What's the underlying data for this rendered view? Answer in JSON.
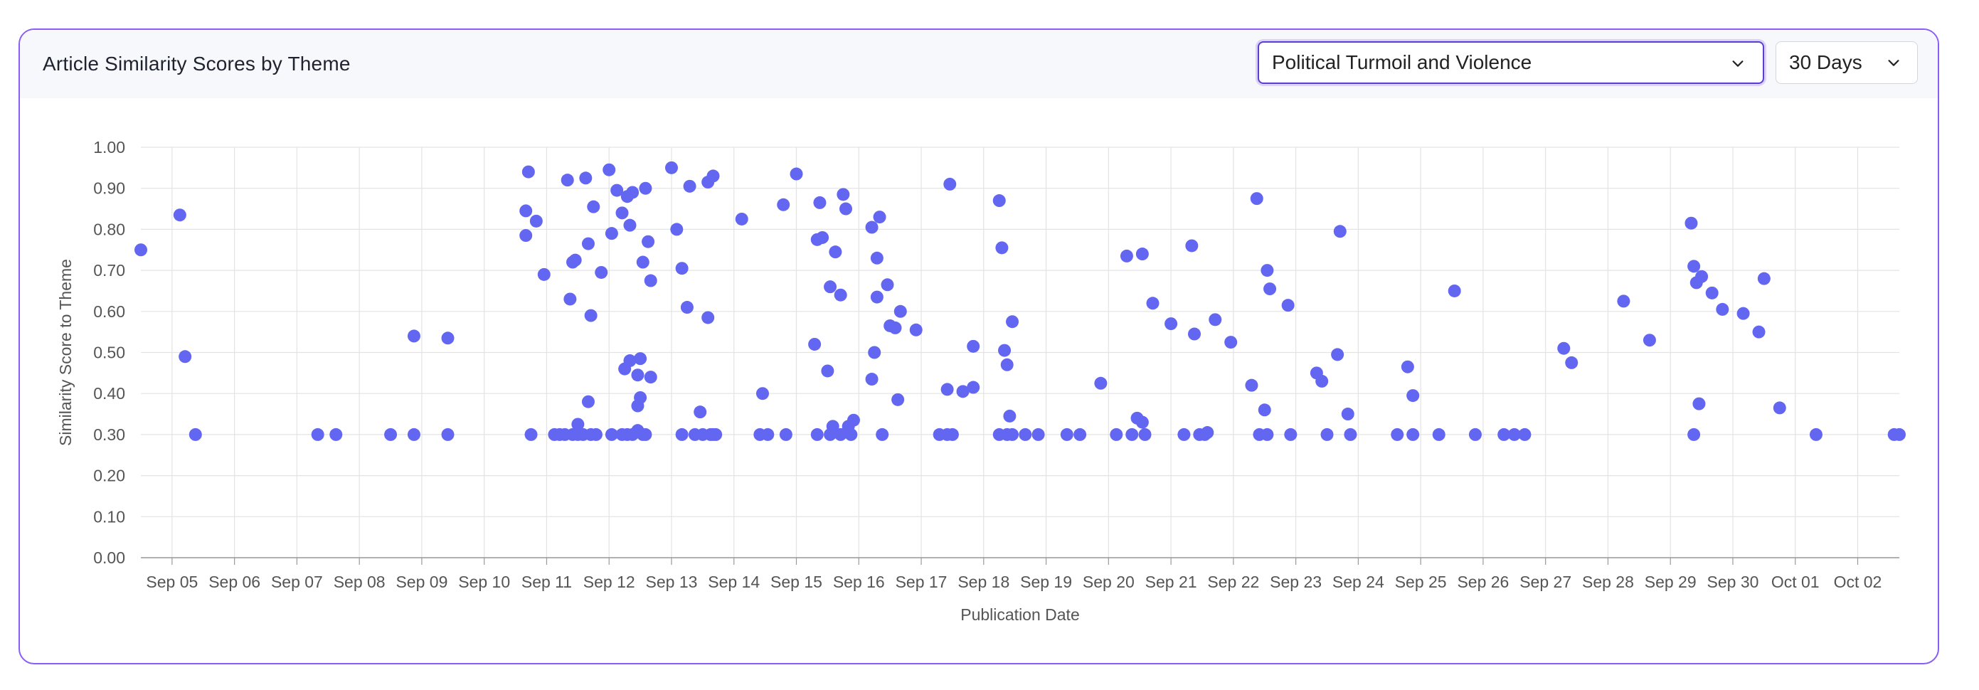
{
  "card": {
    "title": "Article Similarity Scores by Theme"
  },
  "controls": {
    "theme_select": {
      "value": "Political Turmoil and Violence",
      "icon": "chevron-down-icon"
    },
    "range_select": {
      "value": "30 Days",
      "icon": "chevron-down-icon"
    }
  },
  "colors": {
    "accent": "#8b5cf6",
    "point": "#6366f1",
    "grid": "#e3e3e3"
  },
  "chart_data": {
    "type": "scatter",
    "title": "",
    "xlabel": "Publication Date",
    "ylabel": "Similarity Score to Theme",
    "ylim": [
      0,
      1
    ],
    "xlim": [
      "2024-09-04 12:00",
      "2024-10-02 16:00"
    ],
    "grid": true,
    "legend": "none",
    "y_ticks": [
      "0.00",
      "0.10",
      "0.20",
      "0.30",
      "0.40",
      "0.50",
      "0.60",
      "0.70",
      "0.80",
      "0.90",
      "1.00"
    ],
    "x_ticks": [
      "Sep 05",
      "Sep 06",
      "Sep 07",
      "Sep 08",
      "Sep 09",
      "Sep 10",
      "Sep 11",
      "Sep 12",
      "Sep 13",
      "Sep 14",
      "Sep 15",
      "Sep 16",
      "Sep 17",
      "Sep 18",
      "Sep 19",
      "Sep 20",
      "Sep 21",
      "Sep 22",
      "Sep 23",
      "Sep 24",
      "Sep 25",
      "Sep 26",
      "Sep 27",
      "Sep 28",
      "Sep 29",
      "Sep 30",
      "Oct 01",
      "Oct 02"
    ],
    "series": [
      {
        "points": [
          [
            "2024-09-04 12:00",
            0.75
          ],
          [
            "2024-09-05 03:00",
            0.835
          ],
          [
            "2024-09-05 05:00",
            0.49
          ],
          [
            "2024-09-05 09:00",
            0.3
          ],
          [
            "2024-09-07 08:00",
            0.3
          ],
          [
            "2024-09-07 15:00",
            0.3
          ],
          [
            "2024-09-08 12:00",
            0.3
          ],
          [
            "2024-09-08 21:00",
            0.54
          ],
          [
            "2024-09-08 21:00",
            0.3
          ],
          [
            "2024-09-09 10:00",
            0.535
          ],
          [
            "2024-09-09 10:00",
            0.3
          ],
          [
            "2024-09-10 16:00",
            0.845
          ],
          [
            "2024-09-10 16:00",
            0.785
          ],
          [
            "2024-09-10 17:00",
            0.94
          ],
          [
            "2024-09-10 18:00",
            0.3
          ],
          [
            "2024-09-10 20:00",
            0.82
          ],
          [
            "2024-09-10 23:00",
            0.69
          ],
          [
            "2024-09-11 03:00",
            0.3
          ],
          [
            "2024-09-11 05:00",
            0.3
          ],
          [
            "2024-09-11 07:00",
            0.3
          ],
          [
            "2024-09-11 08:00",
            0.92
          ],
          [
            "2024-09-11 09:00",
            0.63
          ],
          [
            "2024-09-11 10:00",
            0.72
          ],
          [
            "2024-09-11 10:00",
            0.3
          ],
          [
            "2024-09-11 11:00",
            0.725
          ],
          [
            "2024-09-11 12:00",
            0.325
          ],
          [
            "2024-09-11 12:00",
            0.3
          ],
          [
            "2024-09-11 14:00",
            0.3
          ],
          [
            "2024-09-11 15:00",
            0.925
          ],
          [
            "2024-09-11 16:00",
            0.38
          ],
          [
            "2024-09-11 16:00",
            0.765
          ],
          [
            "2024-09-11 17:00",
            0.59
          ],
          [
            "2024-09-11 17:00",
            0.3
          ],
          [
            "2024-09-11 18:00",
            0.855
          ],
          [
            "2024-09-11 19:00",
            0.3
          ],
          [
            "2024-09-11 21:00",
            0.695
          ],
          [
            "2024-09-12 00:00",
            0.945
          ],
          [
            "2024-09-12 01:00",
            0.79
          ],
          [
            "2024-09-12 01:00",
            0.3
          ],
          [
            "2024-09-12 03:00",
            0.895
          ],
          [
            "2024-09-12 05:00",
            0.84
          ],
          [
            "2024-09-12 05:00",
            0.3
          ],
          [
            "2024-09-12 06:00",
            0.46
          ],
          [
            "2024-09-12 07:00",
            0.88
          ],
          [
            "2024-09-12 07:00",
            0.3
          ],
          [
            "2024-09-12 08:00",
            0.81
          ],
          [
            "2024-09-12 08:00",
            0.48
          ],
          [
            "2024-09-12 09:00",
            0.89
          ],
          [
            "2024-09-12 09:00",
            0.3
          ],
          [
            "2024-09-12 11:00",
            0.445
          ],
          [
            "2024-09-12 11:00",
            0.37
          ],
          [
            "2024-09-12 11:00",
            0.31
          ],
          [
            "2024-09-12 12:00",
            0.485
          ],
          [
            "2024-09-12 12:00",
            0.39
          ],
          [
            "2024-09-12 13:00",
            0.72
          ],
          [
            "2024-09-12 13:00",
            0.3
          ],
          [
            "2024-09-12 14:00",
            0.9
          ],
          [
            "2024-09-12 14:00",
            0.3
          ],
          [
            "2024-09-12 15:00",
            0.77
          ],
          [
            "2024-09-12 16:00",
            0.675
          ],
          [
            "2024-09-12 16:00",
            0.44
          ],
          [
            "2024-09-13 00:00",
            0.95
          ],
          [
            "2024-09-13 02:00",
            0.8
          ],
          [
            "2024-09-13 04:00",
            0.705
          ],
          [
            "2024-09-13 04:00",
            0.3
          ],
          [
            "2024-09-13 06:00",
            0.61
          ],
          [
            "2024-09-13 07:00",
            0.905
          ],
          [
            "2024-09-13 09:00",
            0.3
          ],
          [
            "2024-09-13 11:00",
            0.355
          ],
          [
            "2024-09-13 12:00",
            0.3
          ],
          [
            "2024-09-13 14:00",
            0.915
          ],
          [
            "2024-09-13 14:00",
            0.585
          ],
          [
            "2024-09-13 15:00",
            0.3
          ],
          [
            "2024-09-13 16:00",
            0.93
          ],
          [
            "2024-09-13 16:00",
            0.3
          ],
          [
            "2024-09-13 17:00",
            0.3
          ],
          [
            "2024-09-14 03:00",
            0.825
          ],
          [
            "2024-09-14 10:00",
            0.3
          ],
          [
            "2024-09-14 11:00",
            0.4
          ],
          [
            "2024-09-14 13:00",
            0.3
          ],
          [
            "2024-09-14 19:00",
            0.86
          ],
          [
            "2024-09-14 20:00",
            0.3
          ],
          [
            "2024-09-15 00:00",
            0.935
          ],
          [
            "2024-09-15 07:00",
            0.52
          ],
          [
            "2024-09-15 08:00",
            0.775
          ],
          [
            "2024-09-15 08:00",
            0.3
          ],
          [
            "2024-09-15 09:00",
            0.865
          ],
          [
            "2024-09-15 10:00",
            0.78
          ],
          [
            "2024-09-15 12:00",
            0.455
          ],
          [
            "2024-09-15 13:00",
            0.66
          ],
          [
            "2024-09-15 13:00",
            0.3
          ],
          [
            "2024-09-15 14:00",
            0.32
          ],
          [
            "2024-09-15 15:00",
            0.745
          ],
          [
            "2024-09-15 17:00",
            0.64
          ],
          [
            "2024-09-15 17:00",
            0.3
          ],
          [
            "2024-09-15 18:00",
            0.885
          ],
          [
            "2024-09-15 19:00",
            0.85
          ],
          [
            "2024-09-15 20:00",
            0.32
          ],
          [
            "2024-09-15 21:00",
            0.3
          ],
          [
            "2024-09-15 22:00",
            0.335
          ],
          [
            "2024-09-16 05:00",
            0.435
          ],
          [
            "2024-09-16 05:00",
            0.805
          ],
          [
            "2024-09-16 06:00",
            0.5
          ],
          [
            "2024-09-16 07:00",
            0.73
          ],
          [
            "2024-09-16 07:00",
            0.635
          ],
          [
            "2024-09-16 08:00",
            0.83
          ],
          [
            "2024-09-16 09:00",
            0.3
          ],
          [
            "2024-09-16 11:00",
            0.665
          ],
          [
            "2024-09-16 12:00",
            0.565
          ],
          [
            "2024-09-16 14:00",
            0.56
          ],
          [
            "2024-09-16 15:00",
            0.385
          ],
          [
            "2024-09-16 16:00",
            0.6
          ],
          [
            "2024-09-16 22:00",
            0.555
          ],
          [
            "2024-09-17 07:00",
            0.3
          ],
          [
            "2024-09-17 10:00",
            0.41
          ],
          [
            "2024-09-17 10:00",
            0.3
          ],
          [
            "2024-09-17 11:00",
            0.91
          ],
          [
            "2024-09-17 12:00",
            0.3
          ],
          [
            "2024-09-17 16:00",
            0.405
          ],
          [
            "2024-09-17 20:00",
            0.415
          ],
          [
            "2024-09-17 20:00",
            0.515
          ],
          [
            "2024-09-18 06:00",
            0.87
          ],
          [
            "2024-09-18 06:00",
            0.3
          ],
          [
            "2024-09-18 07:00",
            0.755
          ],
          [
            "2024-09-18 08:00",
            0.505
          ],
          [
            "2024-09-18 09:00",
            0.47
          ],
          [
            "2024-09-18 09:00",
            0.3
          ],
          [
            "2024-09-18 10:00",
            0.345
          ],
          [
            "2024-09-18 11:00",
            0.575
          ],
          [
            "2024-09-18 11:00",
            0.3
          ],
          [
            "2024-09-18 16:00",
            0.3
          ],
          [
            "2024-09-18 21:00",
            0.3
          ],
          [
            "2024-09-19 08:00",
            0.3
          ],
          [
            "2024-09-19 13:00",
            0.3
          ],
          [
            "2024-09-19 21:00",
            0.425
          ],
          [
            "2024-09-20 03:00",
            0.3
          ],
          [
            "2024-09-20 07:00",
            0.735
          ],
          [
            "2024-09-20 09:00",
            0.3
          ],
          [
            "2024-09-20 11:00",
            0.34
          ],
          [
            "2024-09-20 13:00",
            0.74
          ],
          [
            "2024-09-20 13:00",
            0.33
          ],
          [
            "2024-09-20 14:00",
            0.3
          ],
          [
            "2024-09-20 17:00",
            0.62
          ],
          [
            "2024-09-21 00:00",
            0.57
          ],
          [
            "2024-09-21 05:00",
            0.3
          ],
          [
            "2024-09-21 08:00",
            0.76
          ],
          [
            "2024-09-21 09:00",
            0.545
          ],
          [
            "2024-09-21 11:00",
            0.3
          ],
          [
            "2024-09-21 13:00",
            0.3
          ],
          [
            "2024-09-21 14:00",
            0.305
          ],
          [
            "2024-09-21 17:00",
            0.58
          ],
          [
            "2024-09-21 23:00",
            0.525
          ],
          [
            "2024-09-22 07:00",
            0.42
          ],
          [
            "2024-09-22 09:00",
            0.875
          ],
          [
            "2024-09-22 10:00",
            0.3
          ],
          [
            "2024-09-22 12:00",
            0.36
          ],
          [
            "2024-09-22 13:00",
            0.3
          ],
          [
            "2024-09-22 13:00",
            0.7
          ],
          [
            "2024-09-22 14:00",
            0.655
          ],
          [
            "2024-09-22 21:00",
            0.615
          ],
          [
            "2024-09-22 22:00",
            0.3
          ],
          [
            "2024-09-23 08:00",
            0.45
          ],
          [
            "2024-09-23 10:00",
            0.43
          ],
          [
            "2024-09-23 12:00",
            0.3
          ],
          [
            "2024-09-23 16:00",
            0.495
          ],
          [
            "2024-09-23 17:00",
            0.795
          ],
          [
            "2024-09-23 20:00",
            0.35
          ],
          [
            "2024-09-23 21:00",
            0.3
          ],
          [
            "2024-09-24 15:00",
            0.3
          ],
          [
            "2024-09-24 19:00",
            0.465
          ],
          [
            "2024-09-24 21:00",
            0.3
          ],
          [
            "2024-09-24 21:00",
            0.395
          ],
          [
            "2024-09-25 07:00",
            0.3
          ],
          [
            "2024-09-25 13:00",
            0.65
          ],
          [
            "2024-09-25 21:00",
            0.3
          ],
          [
            "2024-09-26 08:00",
            0.3
          ],
          [
            "2024-09-26 12:00",
            0.3
          ],
          [
            "2024-09-26 16:00",
            0.3
          ],
          [
            "2024-09-27 07:00",
            0.51
          ],
          [
            "2024-09-27 10:00",
            0.475
          ],
          [
            "2024-09-28 06:00",
            0.625
          ],
          [
            "2024-09-28 16:00",
            0.53
          ],
          [
            "2024-09-29 08:00",
            0.815
          ],
          [
            "2024-09-29 09:00",
            0.71
          ],
          [
            "2024-09-29 09:00",
            0.3
          ],
          [
            "2024-09-29 10:00",
            0.67
          ],
          [
            "2024-09-29 11:00",
            0.375
          ],
          [
            "2024-09-29 12:00",
            0.685
          ],
          [
            "2024-09-29 16:00",
            0.645
          ],
          [
            "2024-09-29 20:00",
            0.605
          ],
          [
            "2024-09-30 04:00",
            0.595
          ],
          [
            "2024-09-30 10:00",
            0.55
          ],
          [
            "2024-09-30 12:00",
            0.68
          ],
          [
            "2024-09-30 18:00",
            0.365
          ],
          [
            "2024-10-01 08:00",
            0.3
          ],
          [
            "2024-10-02 14:00",
            0.3
          ],
          [
            "2024-10-02 16:00",
            0.3
          ]
        ]
      }
    ]
  }
}
